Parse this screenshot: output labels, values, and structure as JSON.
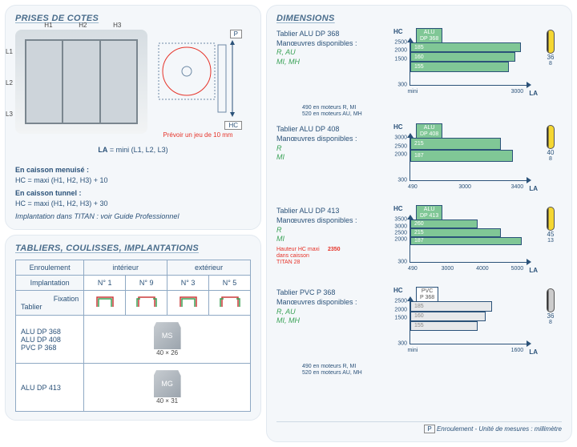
{
  "colors": {
    "frame": "#2b5279",
    "bar_green": "#80c796",
    "bar_gray": "#e6e8ea",
    "red": "#e63329",
    "panel_bg": "#f4f7fa"
  },
  "prises": {
    "title": "PRISES DE COTES",
    "H": [
      "H1",
      "H2",
      "H3"
    ],
    "L": [
      "L1",
      "L2",
      "L3"
    ],
    "P_label": "P",
    "HC_label": "HC",
    "red_note": "Prévoir un jeu de 10 mm",
    "la_formula_label": "LA",
    "la_formula": "= mini (L1, L2, L3)",
    "menuise_title": "En caisson menuisé :",
    "menuise_formula": "HC = maxi (H1, H2, H3) + 10",
    "tunnel_title": "En caisson tunnel :",
    "tunnel_formula": "HC = maxi (H1, H2, H3) + 30",
    "titan": "Implantation dans TITAN :",
    "titan_note": " voir Guide Professionnel"
  },
  "tabliers_panel": {
    "title": "TABLIERS, COULISSES, IMPLANTATIONS",
    "col_enroulement": "Enroulement",
    "col_interieur": "intérieur",
    "col_exterieur": "extérieur",
    "col_implantation": "Implantation",
    "impl": [
      "N° 1",
      "N° 9",
      "N° 3",
      "N° 5"
    ],
    "col_fixation": "Fixation",
    "col_tablier": "Tablier",
    "group1": [
      "ALU DP 368",
      "ALU DP 408",
      "PVC P 368"
    ],
    "group2": [
      "ALU DP 413"
    ],
    "profile1": {
      "label": "MS",
      "w": "40",
      "h": "26"
    },
    "profile2": {
      "label": "MG",
      "w": "40",
      "h": "31"
    }
  },
  "dims": {
    "title": "DIMENSIONS",
    "footer": "Enroulement - Unité de mesures : millimètre",
    "P_key": "P",
    "charts": [
      {
        "title": "Tablier ALU DP 368",
        "man_lines": [
          "Manœuvres disponibles :",
          "R, AU",
          "MI, MH"
        ],
        "badge": "ALU DP 368",
        "lame": {
          "color": "yellow",
          "h": "36",
          "w": "8"
        },
        "yticks": [
          2500,
          2000,
          1500,
          300
        ],
        "xticks": [
          "mini",
          "3000"
        ],
        "bars": [
          {
            "label": "185",
            "top": 0.0,
            "w": 0.95,
            "h": 0.23
          },
          {
            "label": "160",
            "top": 0.23,
            "w": 0.9,
            "h": 0.23
          },
          {
            "label": "155",
            "top": 0.46,
            "w": 0.85,
            "h": 0.23
          }
        ],
        "note": "490 en moteurs R, MI\n520 en moteurs AU, MH"
      },
      {
        "title": "Tablier ALU DP 408",
        "man_lines": [
          "Manœuvres disponibles :",
          "R",
          "MI"
        ],
        "badge": "ALU DP 408",
        "lame": {
          "color": "yellow",
          "h": "40",
          "w": "8"
        },
        "yticks": [
          3000,
          2500,
          2000,
          300
        ],
        "xticks": [
          "490",
          "3000",
          "3400"
        ],
        "bars": [
          {
            "label": "215",
            "top": 0.0,
            "w": 0.78,
            "h": 0.28
          },
          {
            "label": "187",
            "top": 0.28,
            "w": 0.88,
            "h": 0.28
          }
        ],
        "note": ""
      },
      {
        "title": "Tablier ALU DP 413",
        "man_lines": [
          "Manœuvres disponibles :",
          "R",
          "MI"
        ],
        "badge": "ALU DP 413",
        "lame": {
          "color": "yellow",
          "h": "45",
          "w": "13"
        },
        "yticks": [
          3500,
          3000,
          2500,
          2000,
          300
        ],
        "xticks": [
          "490",
          "3000",
          "4000",
          "5000"
        ],
        "red": {
          "text": "Hauteur HC maxi dans caisson TITAN 28",
          "val": "2350"
        },
        "bars": [
          {
            "label": "260",
            "top": 0.0,
            "w": 0.58,
            "h": 0.2
          },
          {
            "label": "215",
            "top": 0.2,
            "w": 0.78,
            "h": 0.2
          },
          {
            "label": "187",
            "top": 0.4,
            "w": 0.96,
            "h": 0.2
          }
        ],
        "note": ""
      },
      {
        "title": "Tablier PVC P 368",
        "man_lines": [
          "Manœuvres disponibles :",
          "R, AU",
          "MI, MH"
        ],
        "badge": "PVC P 368",
        "lame": {
          "color": "gray",
          "h": "36",
          "w": "8"
        },
        "yticks": [
          2500,
          2000,
          1500,
          300
        ],
        "xticks": [
          "mini",
          "1600"
        ],
        "gray": true,
        "bars": [
          {
            "label": "185",
            "top": 0.0,
            "w": 0.7,
            "h": 0.23
          },
          {
            "label": "160",
            "top": 0.23,
            "w": 0.65,
            "h": 0.23
          },
          {
            "label": "155",
            "top": 0.46,
            "w": 0.58,
            "h": 0.23
          }
        ],
        "note": "490 en moteurs R, MI\n520 en moteurs AU, MH"
      }
    ]
  }
}
